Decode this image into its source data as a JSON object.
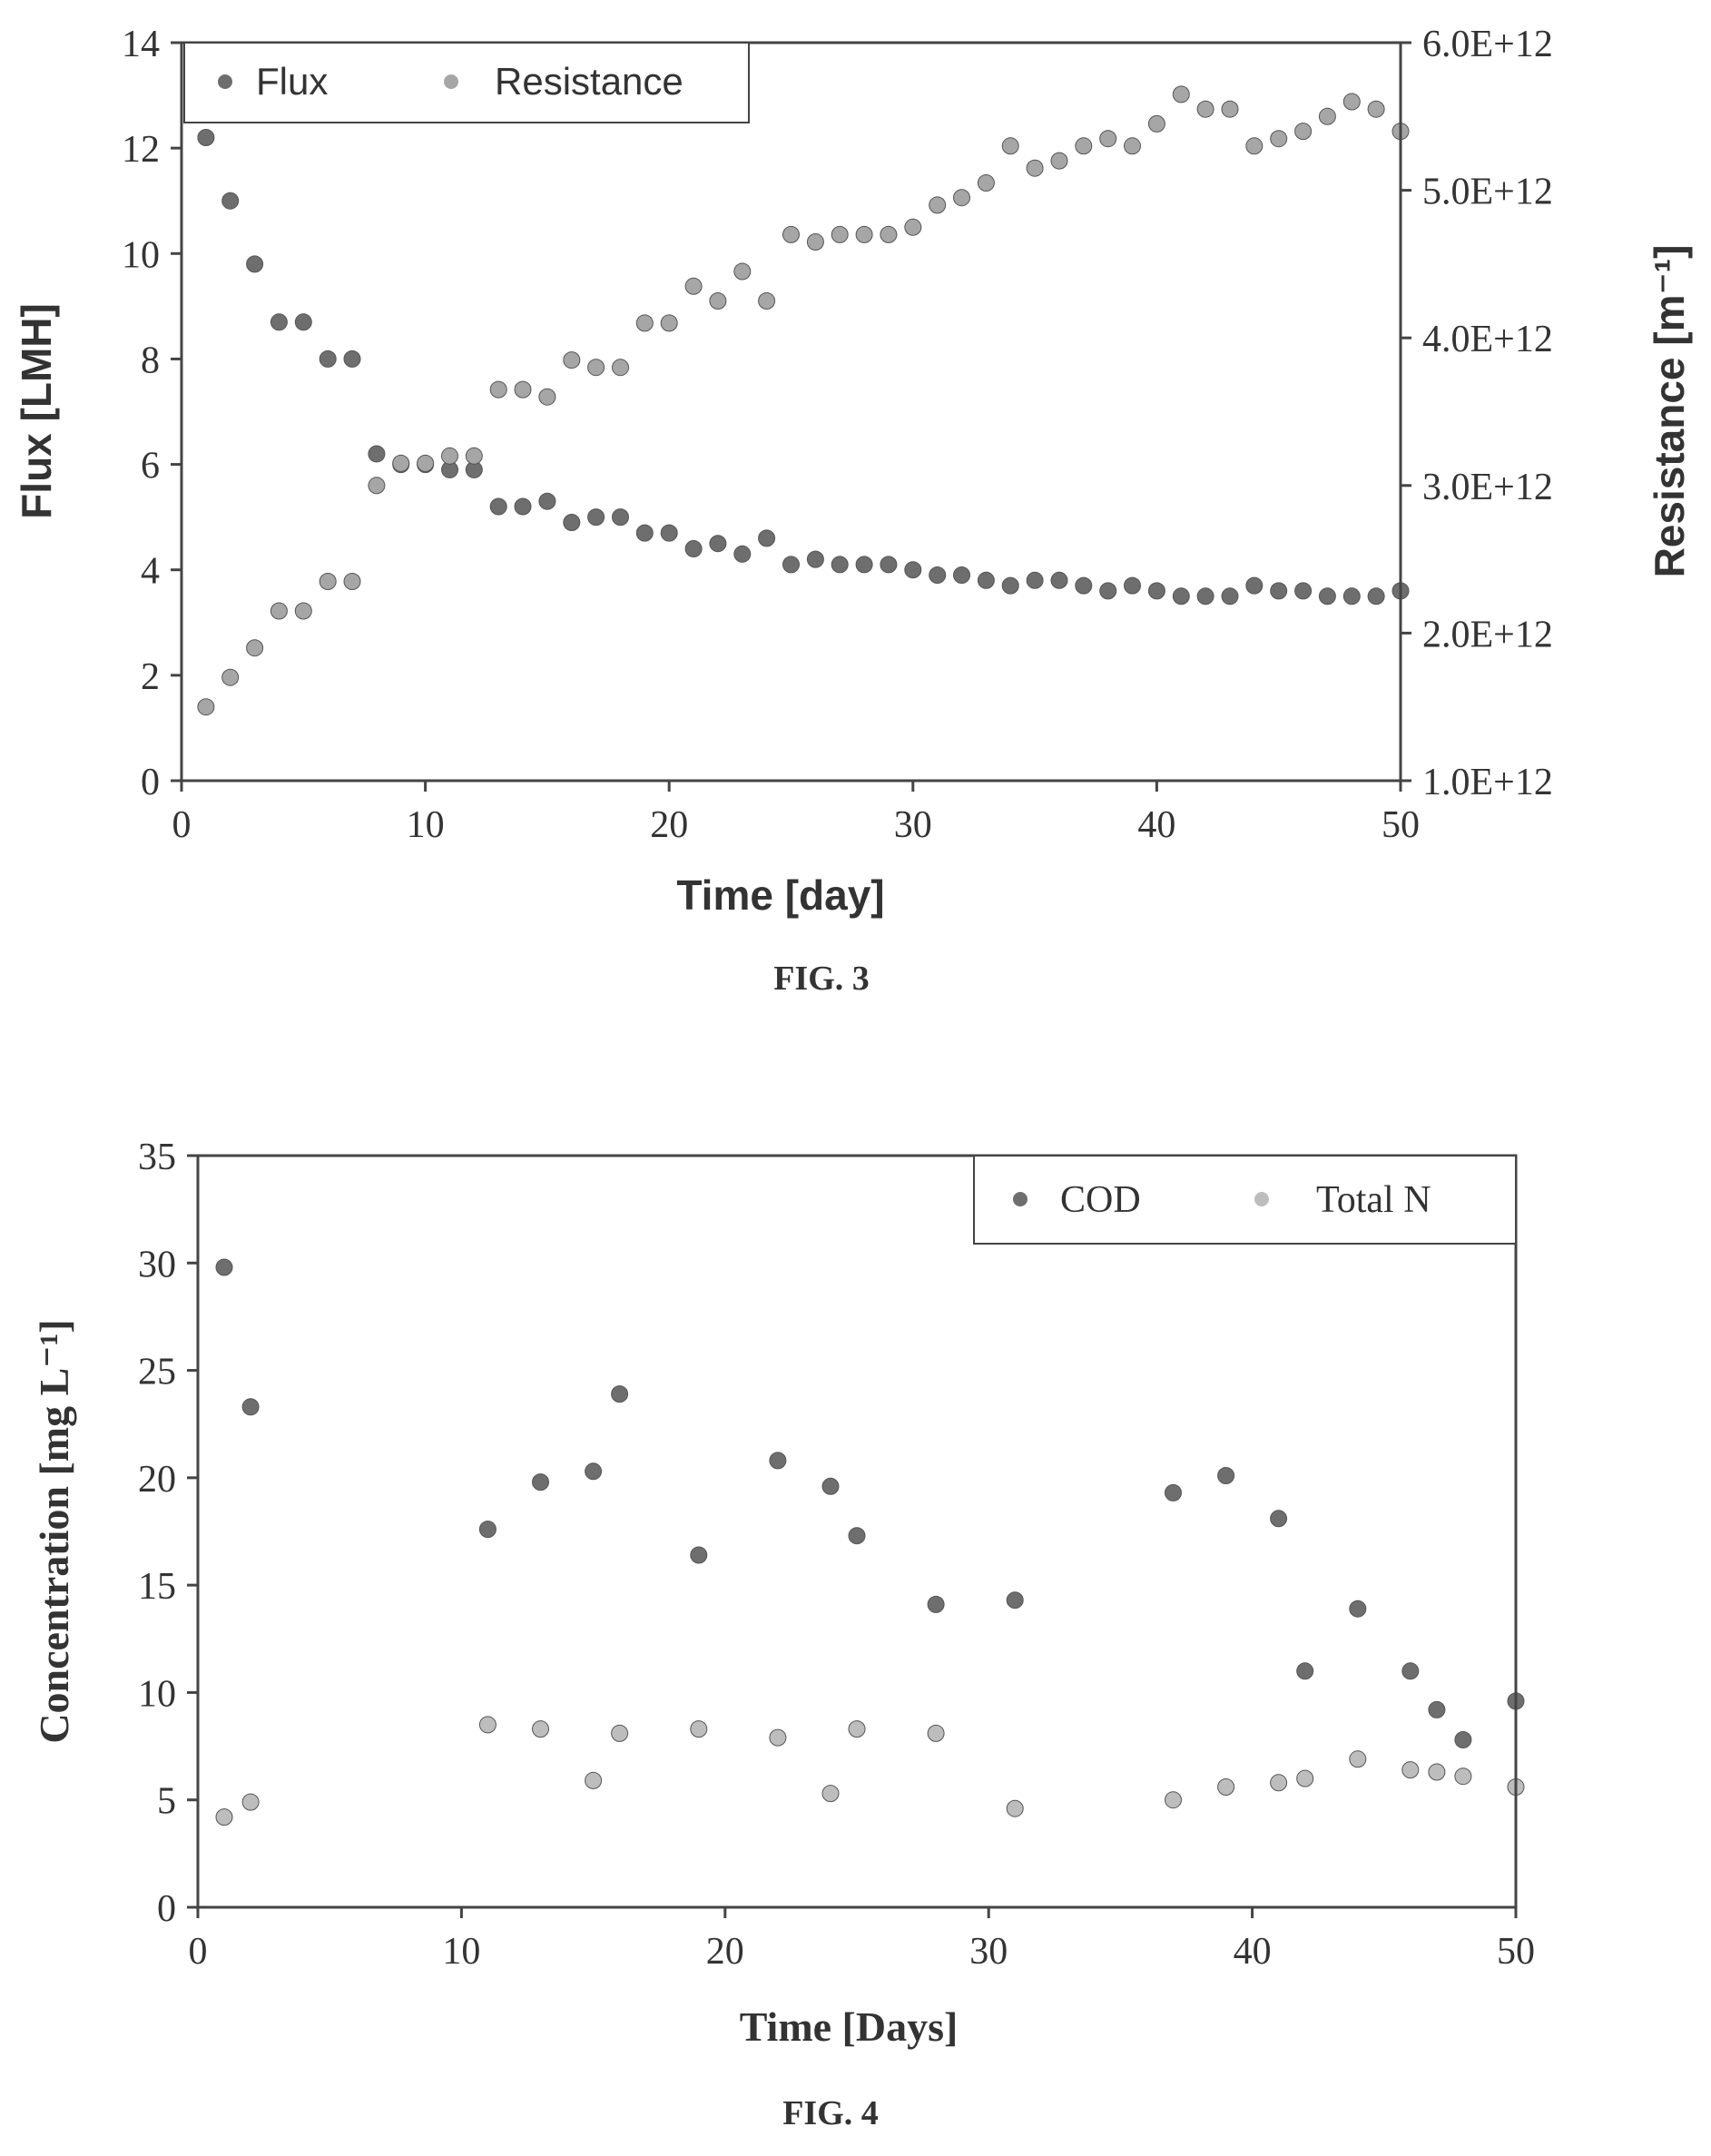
{
  "chart_data": [
    {
      "type": "scatter",
      "caption": "FIG. 3",
      "xlabel": "Time [day]",
      "ylabel": "Flux [LMH]",
      "y2label": "Resistance [m⁻¹]",
      "xlim": [
        0,
        50
      ],
      "ylim": [
        0,
        14
      ],
      "y2lim": [
        1000000000000.0,
        6000000000000.0
      ],
      "xticks": [
        "0",
        "10",
        "20",
        "30",
        "40",
        "50"
      ],
      "yticks": [
        "0",
        "2",
        "4",
        "6",
        "8",
        "10",
        "12",
        "14"
      ],
      "y2ticks": [
        "1.0E+12",
        "2.0E+12",
        "3.0E+12",
        "4.0E+12",
        "5.0E+12",
        "6.0E+12"
      ],
      "legend_position": "top-left",
      "grid": false,
      "series": [
        {
          "name": "Flux",
          "axis": "left",
          "color": "#6e6e6e",
          "x": [
            1,
            2,
            3,
            4,
            5,
            6,
            7,
            8,
            9,
            10,
            11,
            12,
            13,
            14,
            15,
            16,
            17,
            18,
            19,
            20,
            21,
            22,
            23,
            24,
            25,
            26,
            27,
            28,
            29,
            30,
            31,
            32,
            33,
            34,
            35,
            36,
            37,
            38,
            39,
            40,
            41,
            42,
            43,
            44,
            45,
            46,
            47,
            48,
            49,
            50
          ],
          "y": [
            12.2,
            11.0,
            9.8,
            8.7,
            8.7,
            8.0,
            8.0,
            6.2,
            6.0,
            6.0,
            5.9,
            5.9,
            5.2,
            5.2,
            5.3,
            4.9,
            5.0,
            5.0,
            4.7,
            4.7,
            4.4,
            4.5,
            4.3,
            4.6,
            4.1,
            4.2,
            4.1,
            4.1,
            4.1,
            4.0,
            3.9,
            3.9,
            3.8,
            3.7,
            3.8,
            3.8,
            3.7,
            3.6,
            3.7,
            3.6,
            3.5,
            3.5,
            3.5,
            3.7,
            3.6,
            3.6,
            3.5,
            3.5,
            3.5,
            3.6
          ]
        },
        {
          "name": "Resistance",
          "axis": "right",
          "color": "#a6a6a6",
          "x": [
            1,
            2,
            3,
            4,
            5,
            6,
            7,
            8,
            9,
            10,
            11,
            12,
            13,
            14,
            15,
            16,
            17,
            18,
            19,
            20,
            21,
            22,
            23,
            24,
            25,
            26,
            27,
            28,
            29,
            30,
            31,
            32,
            33,
            34,
            35,
            36,
            37,
            38,
            39,
            40,
            41,
            42,
            43,
            44,
            45,
            46,
            47,
            48,
            49,
            50
          ],
          "y": [
            1500000000000.0,
            1700000000000.0,
            1900000000000.0,
            2150000000000.0,
            2150000000000.0,
            2350000000000.0,
            2350000000000.0,
            3000000000000.0,
            3150000000000.0,
            3150000000000.0,
            3200000000000.0,
            3200000000000.0,
            3650000000000.0,
            3650000000000.0,
            3600000000000.0,
            3850000000000.0,
            3800000000000.0,
            3800000000000.0,
            4100000000000.0,
            4100000000000.0,
            4350000000000.0,
            4250000000000.0,
            4450000000000.0,
            4250000000000.0,
            4700000000000.0,
            4650000000000.0,
            4700000000000.0,
            4700000000000.0,
            4700000000000.0,
            4750000000000.0,
            4900000000000.0,
            4950000000000.0,
            5050000000000.0,
            5300000000000.0,
            5150000000000.0,
            5200000000000.0,
            5300000000000.0,
            5350000000000.0,
            5300000000000.0,
            5450000000000.0,
            5650000000000.0,
            5550000000000.0,
            5550000000000.0,
            5300000000000.0,
            5350000000000.0,
            5400000000000.0,
            5500000000000.0,
            5600000000000.0,
            5550000000000.0,
            5400000000000.0
          ]
        }
      ]
    },
    {
      "type": "scatter",
      "caption": "FIG. 4",
      "xlabel": "Time [Days]",
      "ylabel": "Concentration [mg L⁻¹]",
      "xlim": [
        0,
        50
      ],
      "ylim": [
        0,
        35
      ],
      "xticks": [
        "0",
        "10",
        "20",
        "30",
        "40",
        "50"
      ],
      "yticks": [
        "0",
        "5",
        "10",
        "15",
        "20",
        "25",
        "30",
        "35"
      ],
      "legend_position": "top-right",
      "grid": false,
      "series": [
        {
          "name": "COD",
          "color": "#6e6e6e",
          "x": [
            1,
            2,
            11,
            13,
            15,
            16,
            19,
            22,
            24,
            25,
            28,
            31,
            37,
            39,
            41,
            42,
            44,
            46,
            47,
            48,
            50
          ],
          "y": [
            29.8,
            23.3,
            17.6,
            19.8,
            20.3,
            23.9,
            16.4,
            20.8,
            19.6,
            17.3,
            14.1,
            14.3,
            19.3,
            20.1,
            18.1,
            11.0,
            13.9,
            11.0,
            9.2,
            7.8,
            9.6
          ]
        },
        {
          "name": "Total N",
          "color": "#bdbdbd",
          "x": [
            1,
            2,
            11,
            13,
            15,
            16,
            19,
            22,
            24,
            25,
            28,
            31,
            37,
            39,
            41,
            42,
            44,
            46,
            47,
            48,
            50
          ],
          "y": [
            4.2,
            4.9,
            8.5,
            8.3,
            5.9,
            8.1,
            8.3,
            7.9,
            5.3,
            8.3,
            8.1,
            4.6,
            5.0,
            5.6,
            5.8,
            6.0,
            6.9,
            6.4,
            6.3,
            6.1,
            5.6
          ]
        }
      ]
    }
  ]
}
